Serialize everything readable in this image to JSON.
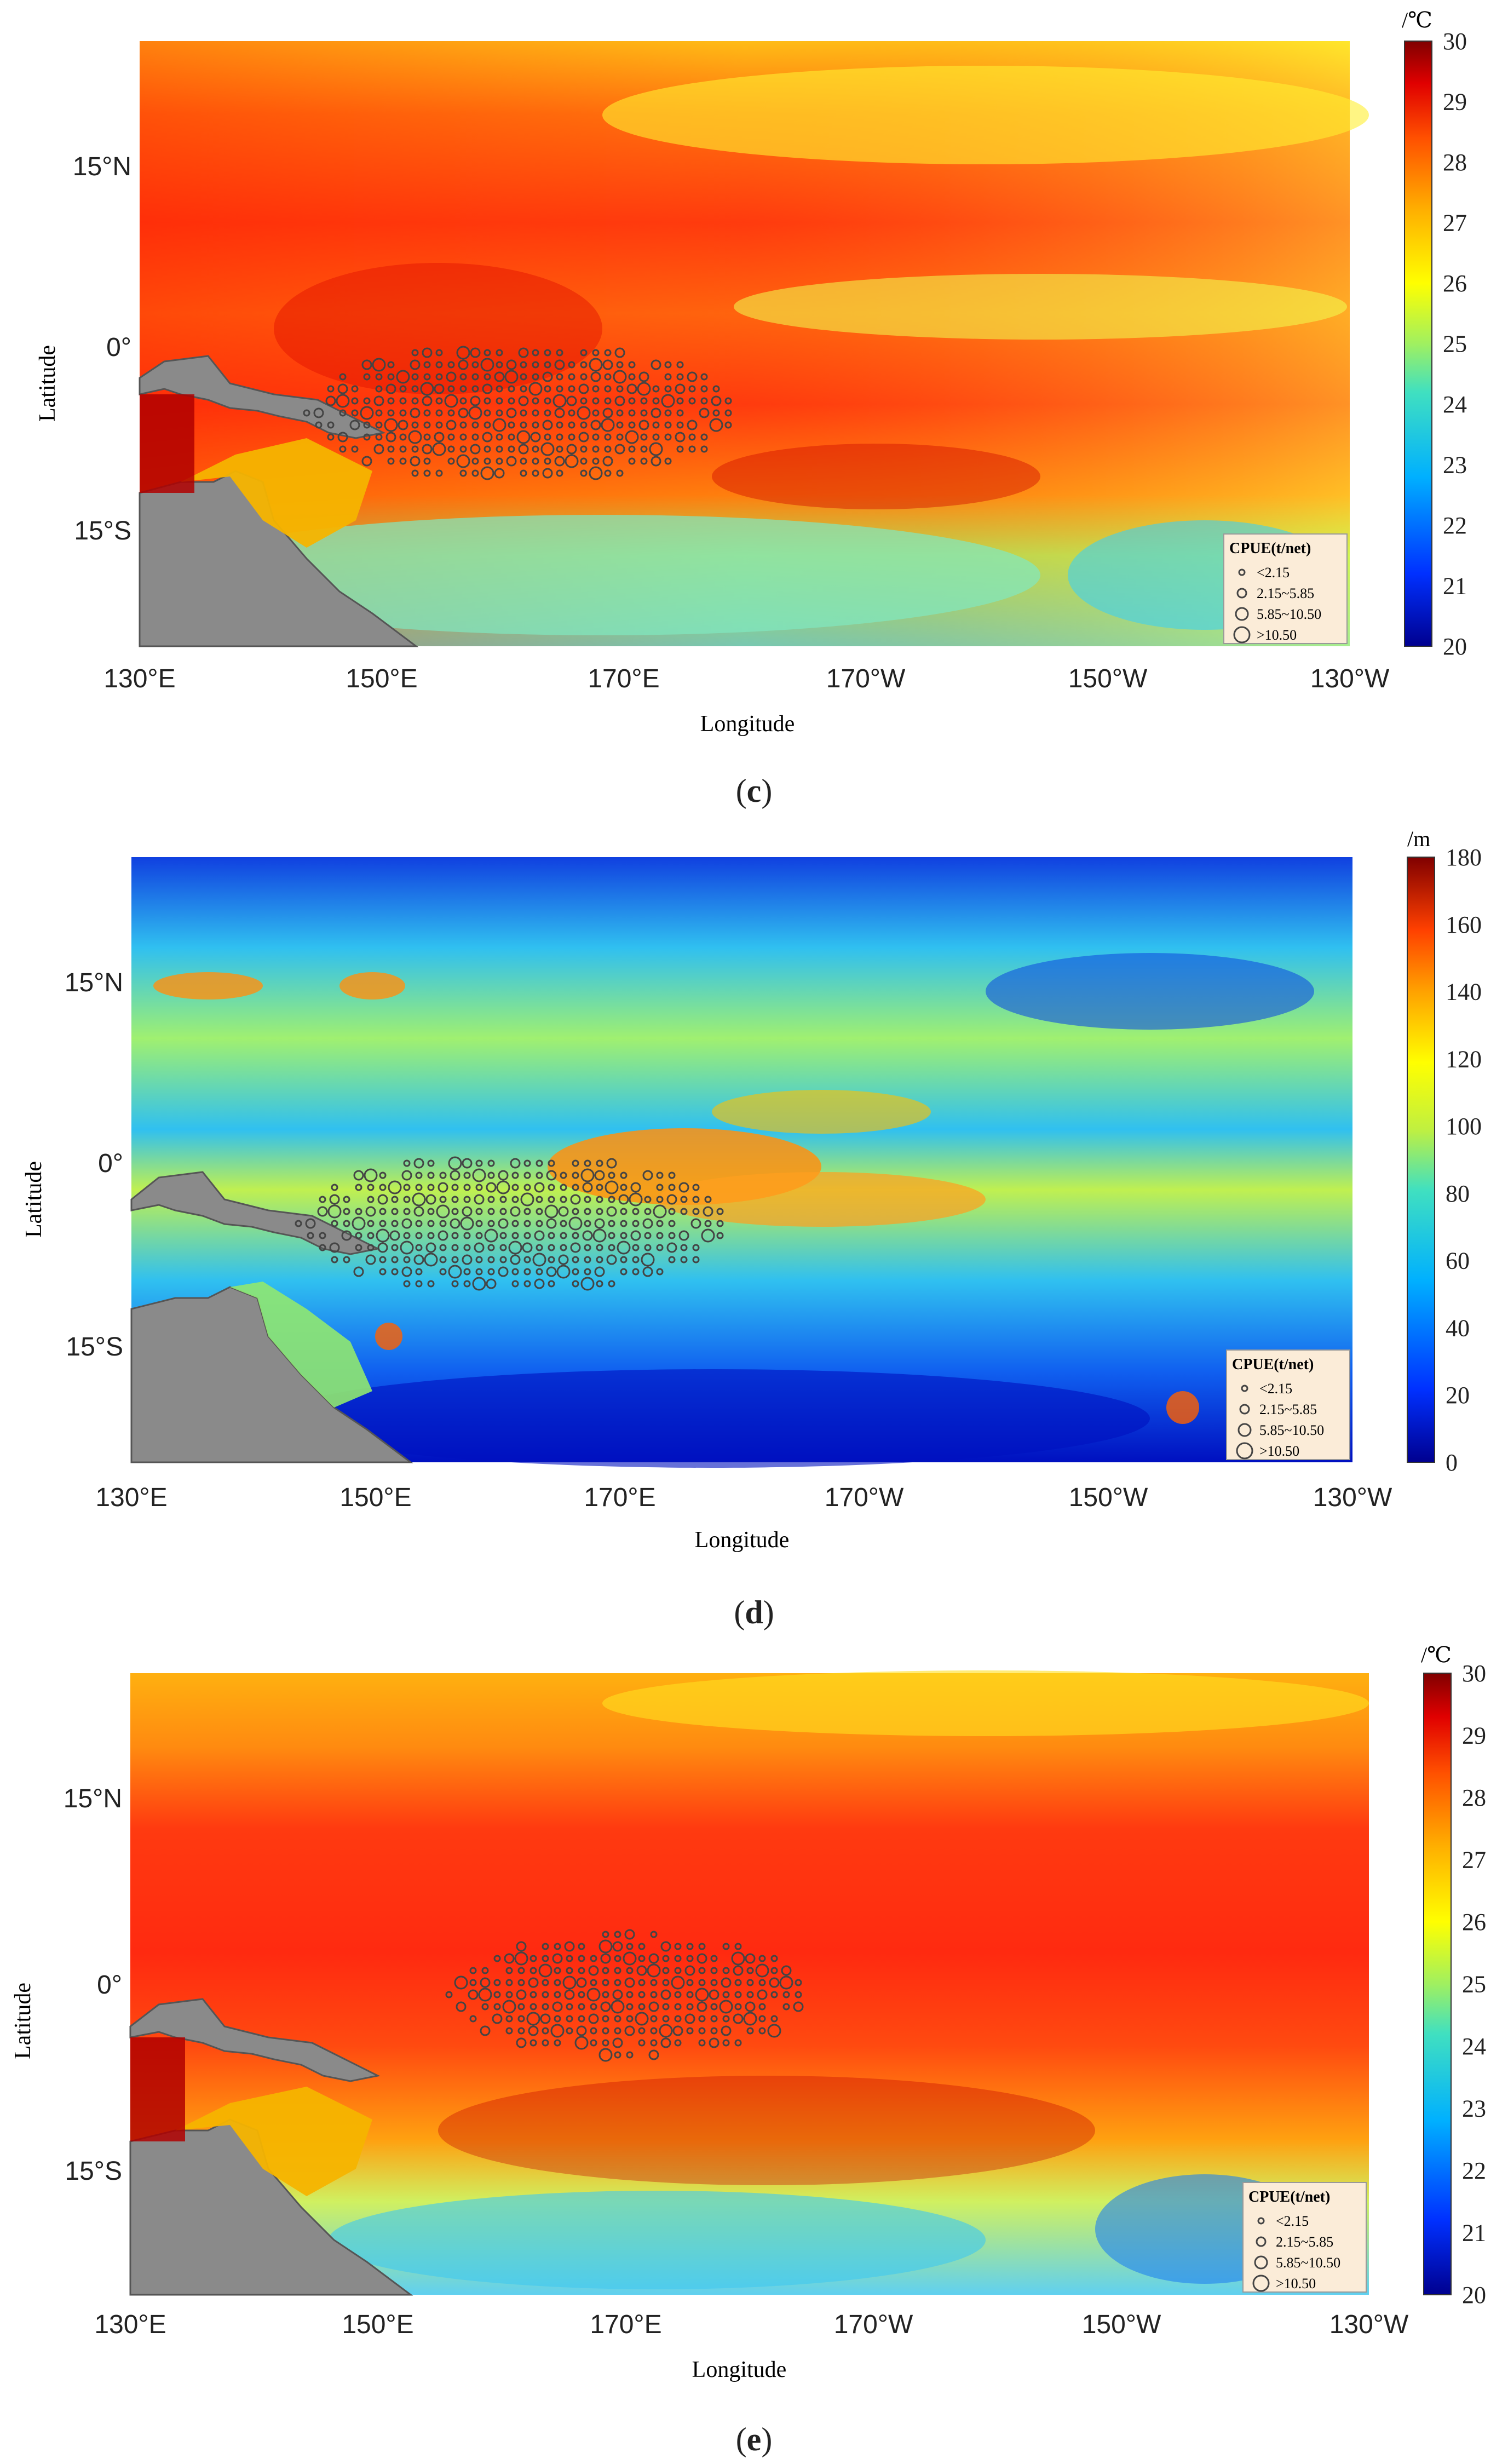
{
  "panels": [
    {
      "id": "c",
      "label": "c",
      "variable": "sst",
      "unit": "/℃",
      "colorbar_ticks": [
        "30",
        "29",
        "28",
        "27",
        "26",
        "25",
        "24",
        "23",
        "22",
        "21",
        "20"
      ],
      "colorbar_range": [
        20,
        30
      ],
      "xlabel": "Longitude",
      "ylabel": "Latitude",
      "x_ticks": [
        "130°E",
        "150°E",
        "170°E",
        "170°W",
        "150°W",
        "130°W"
      ],
      "y_ticks": [
        "15°N",
        "0°",
        "15°S"
      ],
      "legend_title": "CPUE(t/net)",
      "legend_items": [
        "<2.15",
        "2.15~5.85",
        "5.85~10.50",
        ">10.50"
      ]
    },
    {
      "id": "d",
      "label": "d",
      "variable": "depth",
      "unit": "/m",
      "colorbar_ticks": [
        "180",
        "160",
        "140",
        "120",
        "100",
        "80",
        "60",
        "40",
        "20",
        "0"
      ],
      "colorbar_range": [
        0,
        180
      ],
      "xlabel": "Longitude",
      "ylabel": "Latitude",
      "x_ticks": [
        "130°E",
        "150°E",
        "170°E",
        "170°W",
        "150°W",
        "130°W"
      ],
      "y_ticks": [
        "15°N",
        "0°",
        "15°S"
      ],
      "legend_title": "CPUE(t/net)",
      "legend_items": [
        "<2.15",
        "2.15~5.85",
        "5.85~10.50",
        ">10.50"
      ]
    },
    {
      "id": "e",
      "label": "e",
      "variable": "sst",
      "unit": "/℃",
      "colorbar_ticks": [
        "30",
        "29",
        "28",
        "27",
        "26",
        "25",
        "24",
        "23",
        "22",
        "21",
        "20"
      ],
      "colorbar_range": [
        20,
        30
      ],
      "xlabel": "Longitude",
      "ylabel": "Latitude",
      "x_ticks": [
        "130°E",
        "150°E",
        "170°E",
        "170°W",
        "150°W",
        "130°W"
      ],
      "y_ticks": [
        "15°N",
        "0°",
        "15°S"
      ],
      "legend_title": "CPUE(t/net)",
      "legend_items": [
        "<2.15",
        "2.15~5.85",
        "5.85~10.50",
        ">10.50"
      ]
    }
  ],
  "colors": {
    "land": "#8a8a8a",
    "australia_east": "#f5b400",
    "marker": "#444444",
    "legend_bg": "#fbecd8"
  }
}
